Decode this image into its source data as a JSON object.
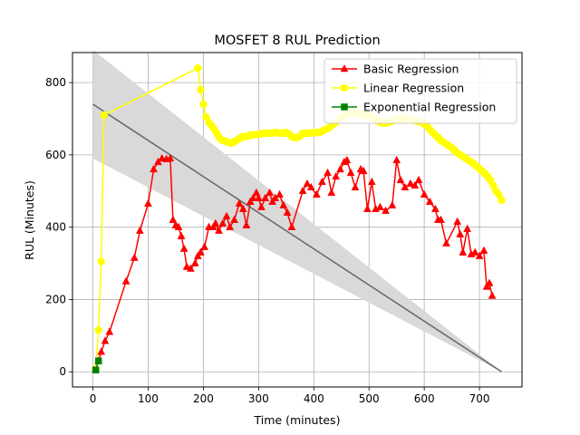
{
  "chart_data": {
    "type": "line",
    "title": "MOSFET 8 RUL Prediction",
    "xlabel": "Time (minutes)",
    "ylabel": "RUL (Minutes)",
    "xlim": [
      -37,
      777
    ],
    "ylim": [
      -42,
      883
    ],
    "xticks": [
      0,
      100,
      200,
      300,
      400,
      500,
      600,
      700
    ],
    "yticks": [
      0,
      200,
      400,
      600,
      800
    ],
    "grid": true,
    "legend_position": "upper-right",
    "series": [
      {
        "name": "Basic Regression",
        "color": "#ff0000",
        "marker": "triangle",
        "x": [
          5,
          10,
          15,
          22,
          30,
          60,
          75,
          85,
          100,
          110,
          118,
          125,
          133,
          140,
          145,
          150,
          155,
          160,
          165,
          170,
          177,
          185,
          190,
          195,
          202,
          210,
          218,
          222,
          228,
          235,
          242,
          248,
          256,
          265,
          272,
          278,
          285,
          290,
          296,
          300,
          305,
          312,
          320,
          325,
          330,
          338,
          345,
          352,
          360,
          380,
          388,
          395,
          405,
          415,
          425,
          432,
          440,
          448,
          455,
          460,
          467,
          475,
          485,
          490,
          497,
          505,
          512,
          520,
          530,
          542,
          550,
          557,
          565,
          575,
          583,
          590,
          600,
          610,
          620,
          625,
          630,
          640,
          660,
          665,
          670,
          678,
          685,
          692,
          700,
          708,
          713,
          718,
          723
        ],
        "y": [
          10,
          30,
          55,
          85,
          110,
          250,
          315,
          390,
          465,
          560,
          580,
          590,
          588,
          590,
          420,
          405,
          400,
          375,
          340,
          290,
          285,
          300,
          320,
          330,
          345,
          400,
          400,
          410,
          390,
          410,
          430,
          400,
          420,
          465,
          450,
          405,
          470,
          480,
          495,
          480,
          455,
          480,
          495,
          470,
          480,
          490,
          460,
          440,
          400,
          500,
          520,
          510,
          490,
          525,
          550,
          495,
          540,
          560,
          580,
          585,
          550,
          510,
          560,
          555,
          450,
          525,
          450,
          455,
          445,
          460,
          585,
          530,
          510,
          520,
          515,
          530,
          490,
          470,
          450,
          420,
          420,
          355,
          415,
          380,
          330,
          395,
          325,
          330,
          320,
          335,
          235,
          245,
          210
        ]
      },
      {
        "name": "Linear Regression",
        "color": "#ffff00",
        "marker": "circle",
        "x": [
          5,
          10,
          15,
          20,
          190,
          195,
          200,
          205,
          210,
          215,
          220,
          225,
          230,
          235,
          240,
          245,
          250,
          255,
          260,
          265,
          270,
          275,
          280,
          285,
          290,
          295,
          300,
          305,
          310,
          315,
          320,
          325,
          330,
          335,
          340,
          345,
          350,
          355,
          360,
          365,
          370,
          375,
          380,
          385,
          390,
          395,
          400,
          405,
          410,
          415,
          420,
          425,
          430,
          435,
          440,
          445,
          450,
          455,
          460,
          465,
          470,
          475,
          480,
          485,
          490,
          495,
          500,
          505,
          510,
          515,
          520,
          525,
          530,
          535,
          540,
          545,
          550,
          555,
          560,
          565,
          570,
          575,
          580,
          585,
          590,
          595,
          600,
          605,
          610,
          615,
          620,
          625,
          630,
          635,
          640,
          645,
          650,
          655,
          660,
          665,
          670,
          675,
          680,
          685,
          690,
          695,
          700,
          705,
          710,
          715,
          720,
          725,
          730,
          735,
          740
        ],
        "y": [
          8,
          115,
          305,
          710,
          840,
          780,
          740,
          705,
          690,
          680,
          670,
          658,
          645,
          640,
          638,
          635,
          632,
          635,
          640,
          645,
          650,
          650,
          652,
          655,
          655,
          656,
          657,
          658,
          660,
          660,
          660,
          660,
          662,
          661,
          660,
          660,
          662,
          658,
          650,
          648,
          648,
          652,
          660,
          660,
          660,
          660,
          662,
          662,
          662,
          665,
          670,
          672,
          678,
          685,
          690,
          698,
          705,
          710,
          712,
          715,
          715,
          715,
          715,
          712,
          712,
          710,
          710,
          705,
          700,
          695,
          690,
          688,
          688,
          690,
          692,
          695,
          698,
          700,
          700,
          700,
          700,
          698,
          696,
          694,
          692,
          690,
          685,
          680,
          670,
          662,
          655,
          648,
          640,
          635,
          630,
          625,
          620,
          612,
          605,
          600,
          595,
          590,
          585,
          580,
          575,
          568,
          562,
          555,
          548,
          540,
          530,
          515,
          500,
          490,
          475
        ]
      },
      {
        "name": "Exponential Regression",
        "color": "#008000",
        "marker": "square",
        "x": [
          5,
          10
        ],
        "y": [
          5,
          30
        ]
      }
    ],
    "fit_line": {
      "color": "#666666",
      "x": [
        0,
        740
      ],
      "y": [
        740,
        0
      ]
    },
    "confidence_band": {
      "color": "#d9d9d9",
      "x": [
        0,
        740
      ],
      "upper": [
        890,
        0
      ],
      "lower": [
        590,
        0
      ]
    }
  }
}
